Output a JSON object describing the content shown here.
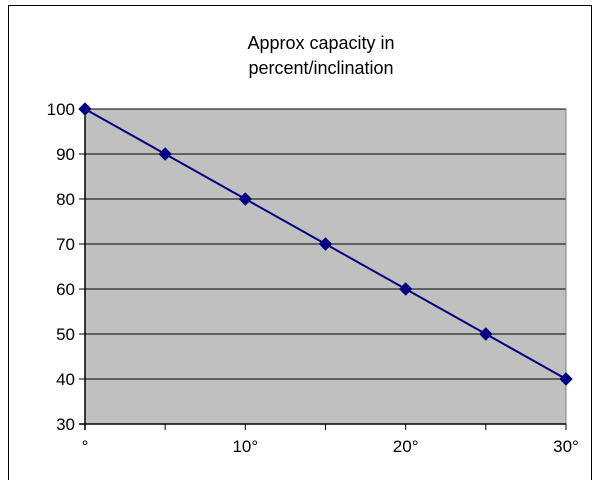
{
  "chart_data": {
    "type": "line",
    "title_lines": [
      "Approx capacity in",
      "percent/inclination"
    ],
    "xlabel": "",
    "ylabel": "",
    "x": [
      0,
      5,
      10,
      15,
      20,
      25,
      30
    ],
    "x_tick_values": [
      0,
      10,
      20,
      30
    ],
    "x_tick_labels": [
      "°",
      "10°",
      "20°",
      "30°"
    ],
    "ylim": [
      30,
      100
    ],
    "y_ticks": [
      30,
      40,
      50,
      60,
      70,
      80,
      90,
      100
    ],
    "series": [
      {
        "values": [
          100,
          90,
          80,
          70,
          60,
          50,
          40
        ],
        "color": "#000080",
        "marker": "diamond"
      }
    ],
    "plot_background": "#c0c0c0",
    "grid": true,
    "legend": "none"
  }
}
